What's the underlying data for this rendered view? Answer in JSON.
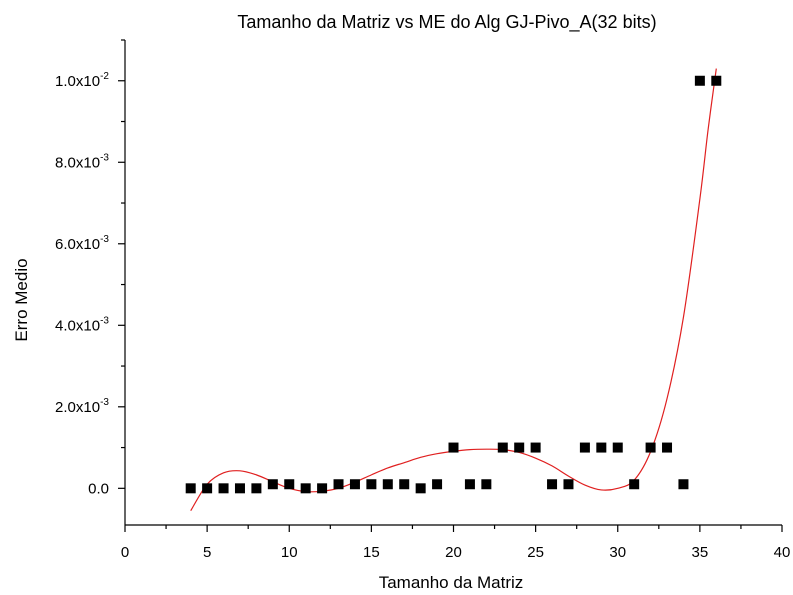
{
  "chart_data": {
    "type": "scatter",
    "title": "Tamanho da Matriz vs ME do Alg GJ-Pivo_A(32 bits)",
    "xlabel": "Tamanho da Matriz",
    "ylabel": "Erro Medio",
    "xlim": [
      0,
      40
    ],
    "ylim": [
      -0.0009,
      0.011
    ],
    "x_ticks": [
      "0",
      "5",
      "10",
      "15",
      "20",
      "25",
      "30",
      "35",
      "40"
    ],
    "y_ticks": [
      {
        "mantissa": "0.0",
        "exponent": ""
      },
      {
        "mantissa": "2.0x10",
        "exponent": "-3"
      },
      {
        "mantissa": "4.0x10",
        "exponent": "-3"
      },
      {
        "mantissa": "6.0x10",
        "exponent": "-3"
      },
      {
        "mantissa": "8.0x10",
        "exponent": "-3"
      },
      {
        "mantissa": "1.0x10",
        "exponent": "-2"
      }
    ],
    "grid": false,
    "marker_color": "#000000",
    "fit_color": "#e02020",
    "points": [
      [
        4,
        0.0
      ],
      [
        5,
        0.0
      ],
      [
        6,
        0.0
      ],
      [
        7,
        0.0
      ],
      [
        8,
        0.0
      ],
      [
        9,
        0.0001
      ],
      [
        10,
        0.0001
      ],
      [
        11,
        0.0
      ],
      [
        12,
        0.0
      ],
      [
        13,
        0.0001
      ],
      [
        14,
        0.0001
      ],
      [
        15,
        0.0001
      ],
      [
        16,
        0.0001
      ],
      [
        17,
        0.0001
      ],
      [
        18,
        0.0
      ],
      [
        19,
        0.0001
      ],
      [
        20,
        0.001
      ],
      [
        21,
        0.0001
      ],
      [
        22,
        0.0001
      ],
      [
        23,
        0.001
      ],
      [
        24,
        0.001
      ],
      [
        25,
        0.001
      ],
      [
        26,
        0.0001
      ],
      [
        27,
        0.0001
      ],
      [
        28,
        0.001
      ],
      [
        29,
        0.001
      ],
      [
        30,
        0.001
      ],
      [
        31,
        0.0001
      ],
      [
        32,
        0.001
      ],
      [
        33,
        0.001
      ],
      [
        34,
        0.0001
      ],
      [
        35,
        0.01
      ],
      [
        36,
        0.01
      ]
    ],
    "fit_curve": [
      [
        4,
        -0.00055
      ],
      [
        5,
        0.0001
      ],
      [
        6,
        0.00038
      ],
      [
        7,
        0.00043
      ],
      [
        8,
        0.00033
      ],
      [
        9,
        0.00016
      ],
      [
        10,
        0.0
      ],
      [
        11,
        -8e-05
      ],
      [
        12,
        -7e-05
      ],
      [
        13,
        0.0
      ],
      [
        14,
        0.00015
      ],
      [
        15,
        0.00033
      ],
      [
        16,
        0.0005
      ],
      [
        17,
        0.00063
      ],
      [
        18,
        0.00076
      ],
      [
        19,
        0.00085
      ],
      [
        20,
        0.00091
      ],
      [
        21,
        0.00095
      ],
      [
        22,
        0.00096
      ],
      [
        23,
        0.00095
      ],
      [
        24,
        0.00088
      ],
      [
        25,
        0.00074
      ],
      [
        26,
        0.00055
      ],
      [
        27,
        0.0003
      ],
      [
        28,
        8e-05
      ],
      [
        29,
        -4e-05
      ],
      [
        30,
        0.0
      ],
      [
        31,
        0.0002
      ],
      [
        32,
        0.0009
      ],
      [
        33,
        0.0022
      ],
      [
        34,
        0.0042
      ],
      [
        35,
        0.0071
      ],
      [
        35.5,
        0.0088
      ],
      [
        36,
        0.0103
      ]
    ]
  }
}
